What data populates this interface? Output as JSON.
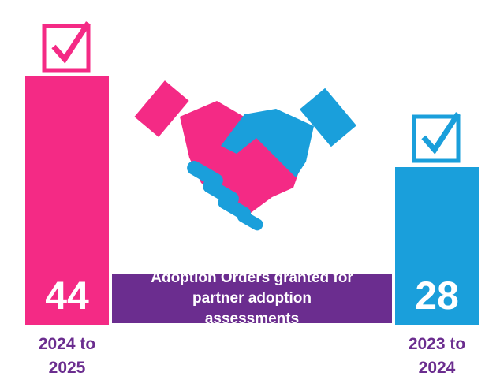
{
  "chart_data": {
    "type": "bar",
    "title": "Adoption Orders granted for partner adoption assessments",
    "categories": [
      "2024 to 2025",
      "2023 to 2024"
    ],
    "values": [
      44,
      28
    ],
    "colors": [
      "#f42a85",
      "#1a9fdb"
    ],
    "label_color": "#6b2d8f"
  }
}
